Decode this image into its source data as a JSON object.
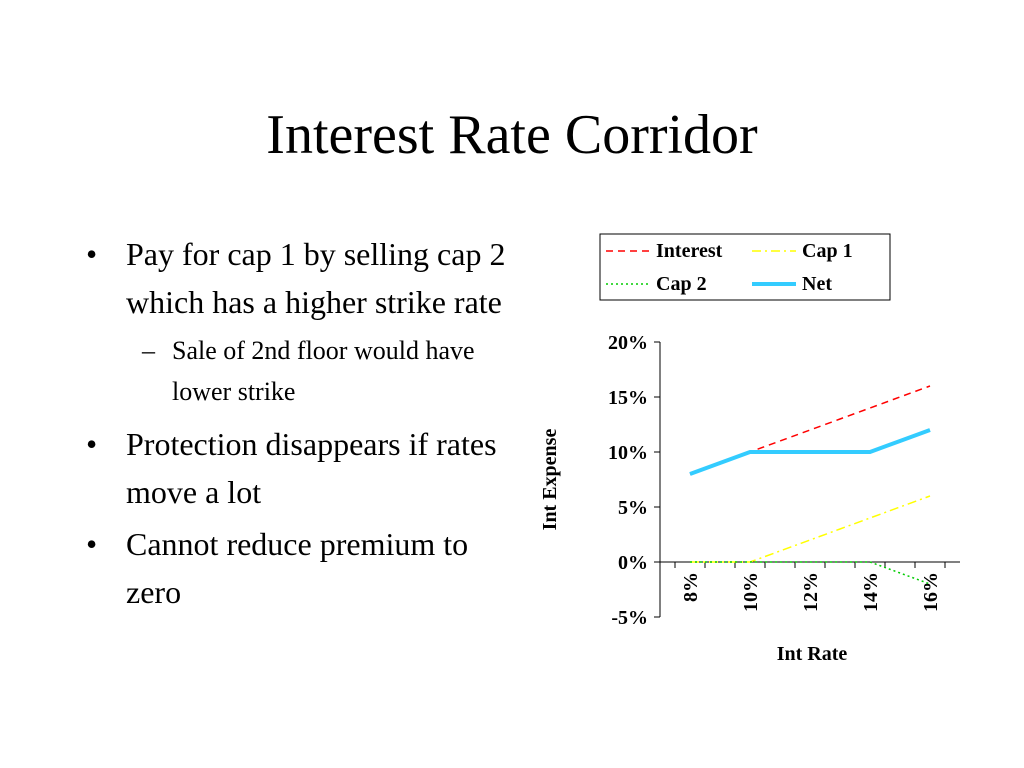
{
  "slide": {
    "title": "Interest Rate Corridor",
    "bullets": [
      {
        "text": "Pay for cap 1 by selling cap 2 which has a higher strike rate",
        "sub": [
          "Sale of 2nd floor would have lower strike"
        ]
      },
      {
        "text": "Protection disappears if rates move a lot",
        "sub": []
      },
      {
        "text": "Cannot reduce premium to zero",
        "sub": []
      }
    ]
  },
  "chart_data": {
    "type": "line",
    "title": "",
    "xlabel": "Int Rate",
    "ylabel": "Int Expense",
    "x": [
      8,
      9,
      10,
      11,
      12,
      13,
      14,
      15,
      16
    ],
    "x_tick_labels": [
      "8%",
      "10%",
      "12%",
      "14%",
      "16%"
    ],
    "x_ticks": [
      8,
      10,
      12,
      14,
      16
    ],
    "y_tick_labels": [
      "-5%",
      "0%",
      "5%",
      "10%",
      "15%",
      "20%"
    ],
    "y_ticks": [
      -5,
      0,
      5,
      10,
      15,
      20
    ],
    "ylim": [
      -5,
      20
    ],
    "legend_position": "top",
    "grid": false,
    "series": [
      {
        "name": "Interest",
        "color": "#ff0000",
        "style": "dashed",
        "values": [
          8,
          9,
          10,
          11,
          12,
          13,
          14,
          15,
          16
        ]
      },
      {
        "name": "Cap 1",
        "color": "#ffff00",
        "style": "dashdot",
        "values": [
          0,
          0,
          0,
          1,
          2,
          3,
          4,
          5,
          6
        ]
      },
      {
        "name": "Cap 2",
        "color": "#00cc00",
        "style": "dotted",
        "values": [
          0,
          0,
          0,
          0,
          0,
          0,
          0,
          -1,
          -2
        ]
      },
      {
        "name": "Net",
        "color": "#33ccff",
        "style": "solid-thick",
        "values": [
          8,
          9,
          10,
          10,
          10,
          10,
          10,
          11,
          12
        ]
      }
    ]
  }
}
